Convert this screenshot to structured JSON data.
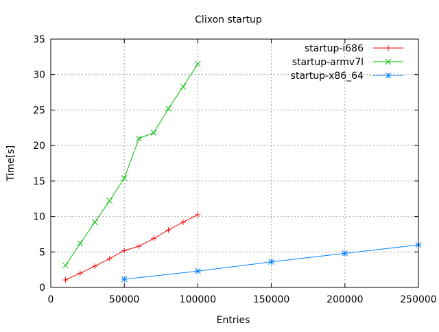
{
  "chart_data": {
    "type": "line",
    "title": "Clixon startup",
    "xlabel": "Entries",
    "ylabel": "Time[s]",
    "xlim": [
      0,
      250000
    ],
    "ylim": [
      0,
      35
    ],
    "xticks": [
      0,
      50000,
      100000,
      150000,
      200000,
      250000
    ],
    "yticks": [
      0,
      5,
      10,
      15,
      20,
      25,
      30,
      35
    ],
    "grid": true,
    "legend_position": "top-right",
    "series": [
      {
        "name": "startup-i686",
        "color": "#ff0000",
        "marker": "plus",
        "x": [
          10000,
          20000,
          30000,
          40000,
          50000,
          60000,
          70000,
          80000,
          90000,
          100000
        ],
        "y": [
          1.05,
          2.0,
          3.0,
          4.05,
          5.2,
          5.8,
          6.9,
          8.1,
          9.2,
          10.25
        ]
      },
      {
        "name": "startup-armv7l",
        "color": "#00c000",
        "marker": "cross",
        "x": [
          10000,
          20000,
          30000,
          40000,
          50000,
          60000,
          70000,
          80000,
          90000,
          100000
        ],
        "y": [
          3.1,
          6.2,
          9.2,
          12.2,
          15.4,
          21.0,
          21.8,
          25.2,
          28.3,
          31.5
        ]
      },
      {
        "name": "startup-x86_64",
        "color": "#0080ff",
        "marker": "star",
        "x": [
          50000,
          100000,
          150000,
          200000,
          250000
        ],
        "y": [
          1.15,
          2.3,
          3.6,
          4.8,
          6.0
        ]
      }
    ]
  }
}
